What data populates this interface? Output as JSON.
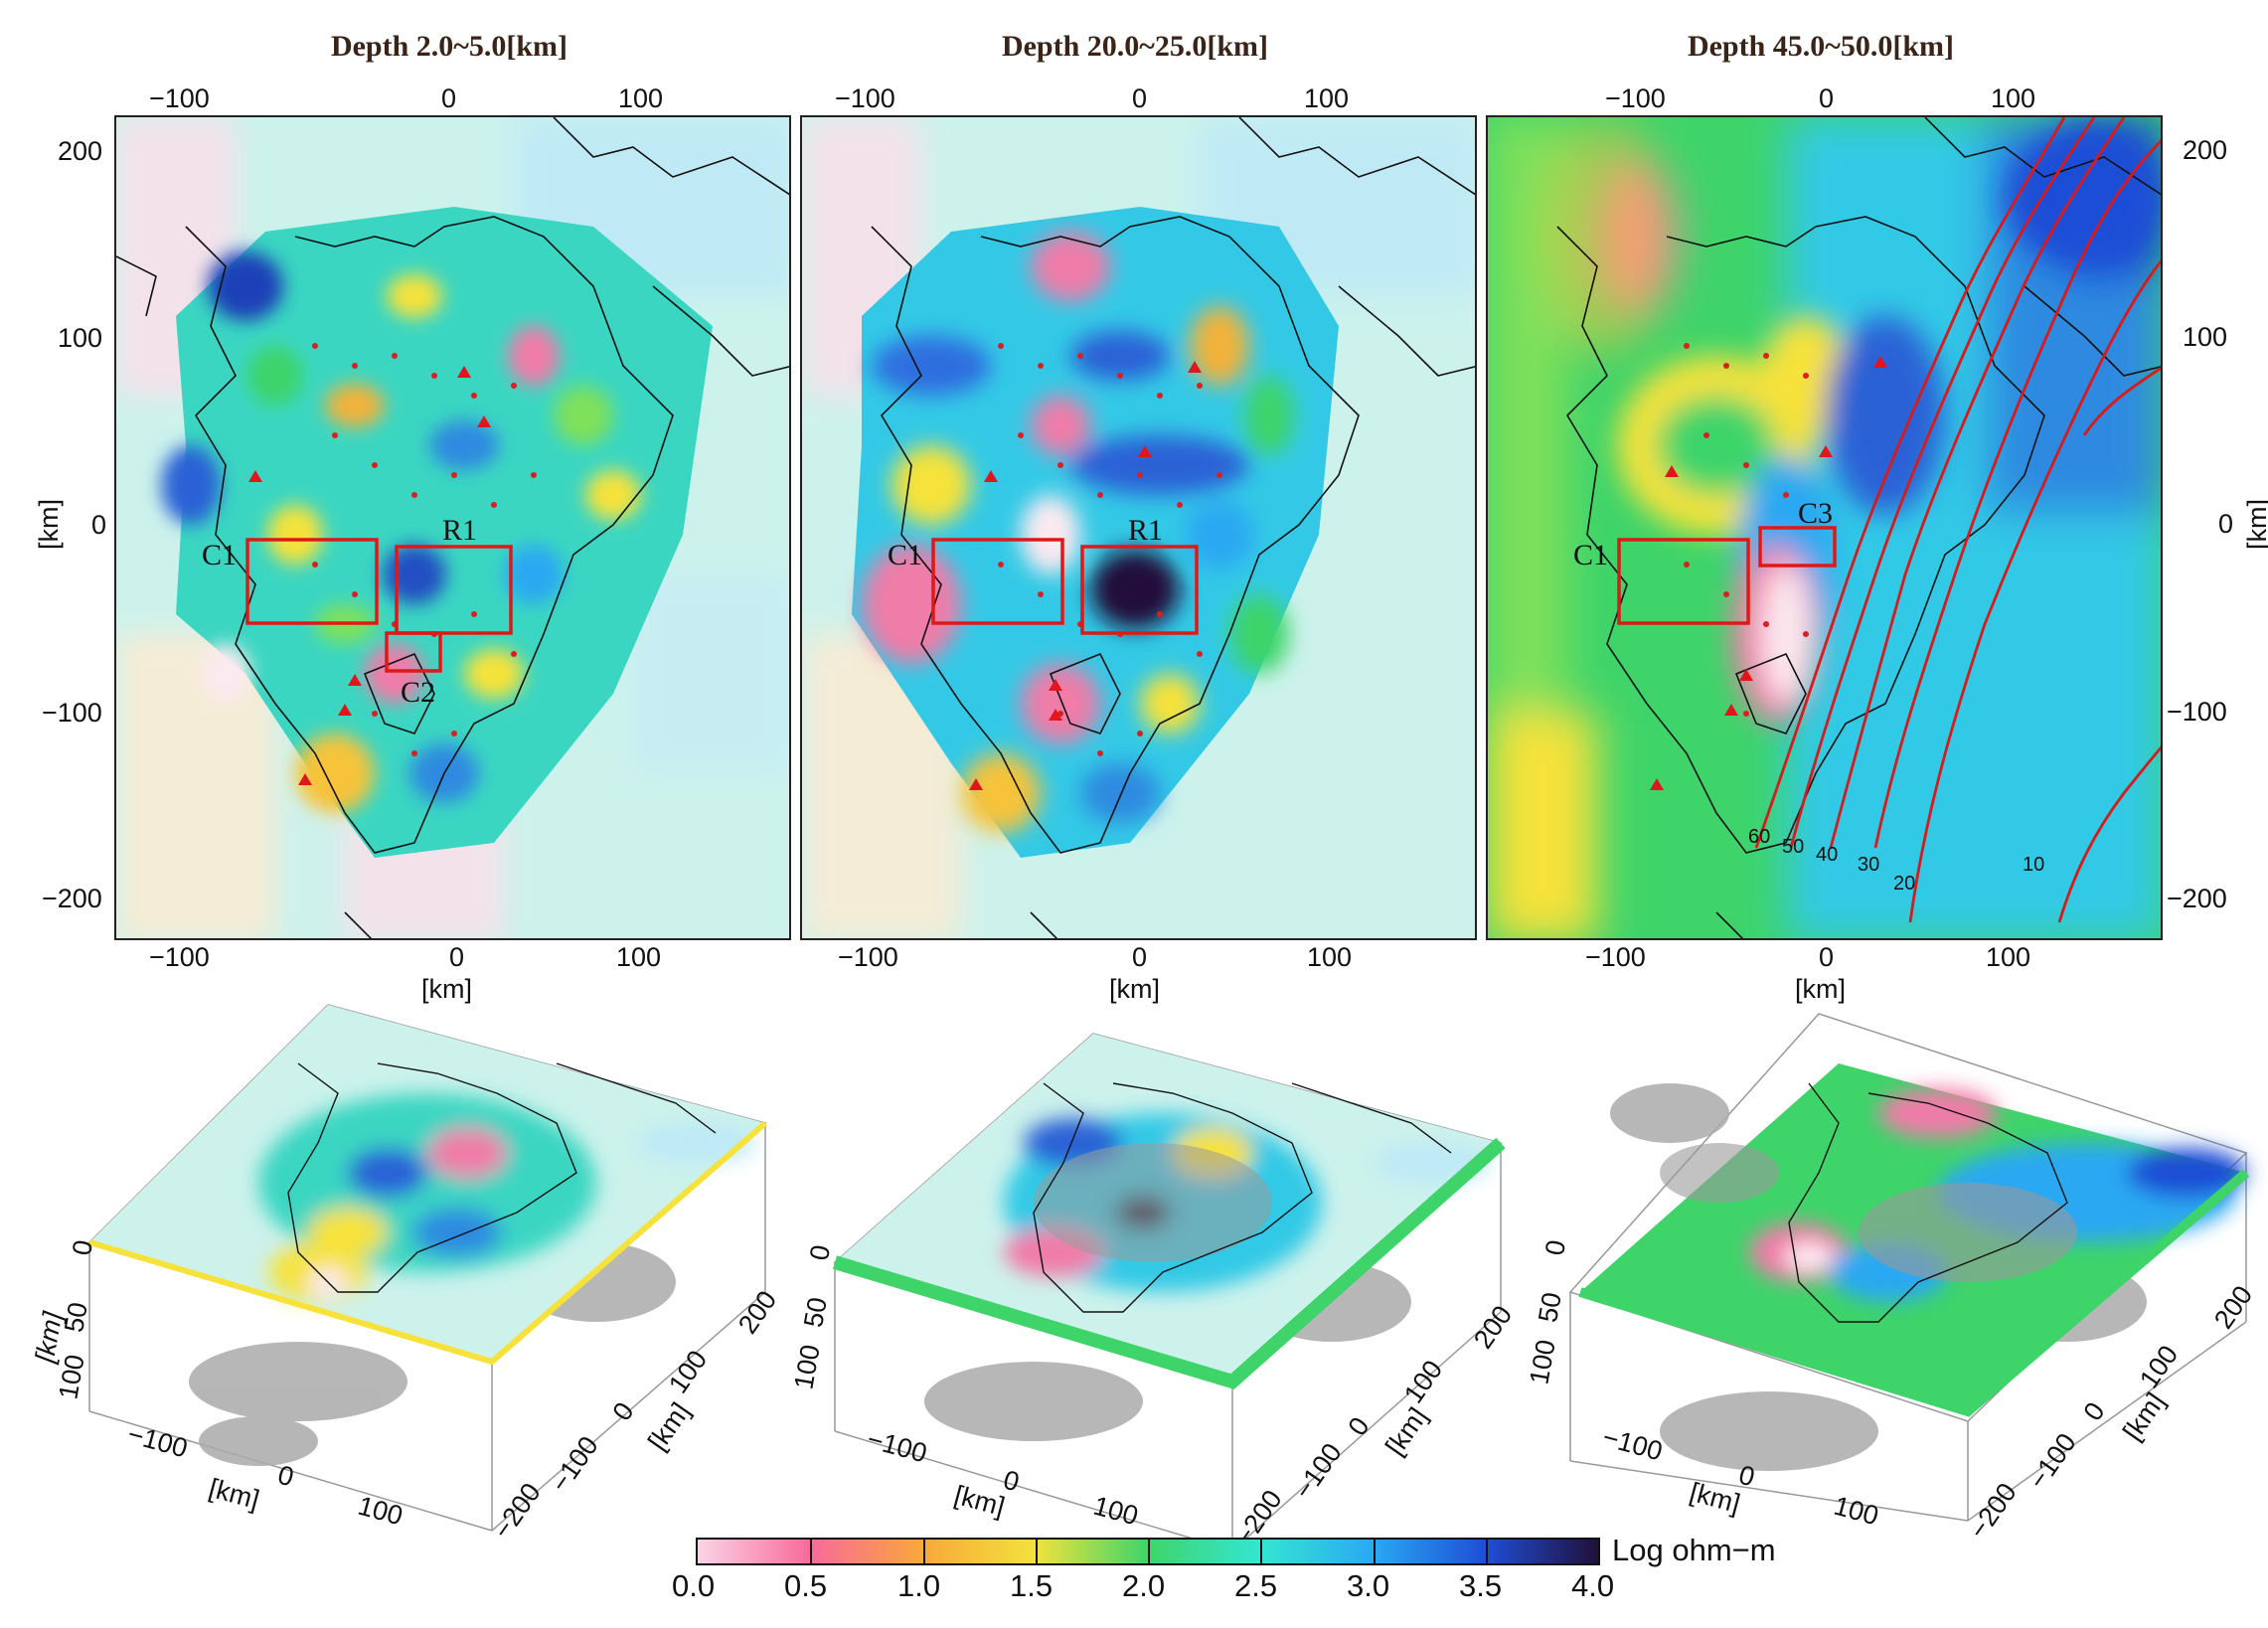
{
  "panels": [
    {
      "title": "Depth 2.0~5.0[km]",
      "boxes": [
        "C1",
        "R1",
        "C2"
      ]
    },
    {
      "title": "Depth 20.0~25.0[km]",
      "boxes": [
        "C1",
        "R1"
      ]
    },
    {
      "title": "Depth 45.0~50.0[km]",
      "boxes": [
        "C1",
        "C3"
      ]
    }
  ],
  "axes": {
    "x_ticks": [
      "−100",
      "0",
      "100"
    ],
    "y_ticks": [
      "200",
      "100",
      "0",
      "−100",
      "−200"
    ],
    "x_label": "[km]",
    "y_label": "[km]"
  },
  "slab_contours": [
    "60",
    "50",
    "40",
    "30",
    "20",
    "10"
  ],
  "block_views": {
    "depth_ticks": [
      "0",
      "50",
      "100"
    ],
    "depth_label": "[km]",
    "x_ticks": [
      "−100",
      "0",
      "100"
    ],
    "x_label": "[km]",
    "y_ticks": [
      "200",
      "100",
      "0",
      "−100",
      "−200"
    ],
    "y_label": "[km]"
  },
  "colorbar": {
    "ticks": [
      "0.0",
      "0.5",
      "1.0",
      "1.5",
      "2.0",
      "2.5",
      "3.0",
      "3.5",
      "4.0"
    ],
    "unit_label": "Log ohm−m",
    "min": 0.0,
    "max": 4.0,
    "stops": [
      "#fbd3e6",
      "#f86a9a",
      "#f8a83a",
      "#f2e23c",
      "#3ed46a",
      "#33e6d2",
      "#2aa8f2",
      "#1f4ed6",
      "#20103a"
    ]
  },
  "colors": {
    "box_red": "#e01818",
    "contour_red": "#d81a1a",
    "station_red": "#d82020",
    "volcano_red": "#e0161c"
  }
}
